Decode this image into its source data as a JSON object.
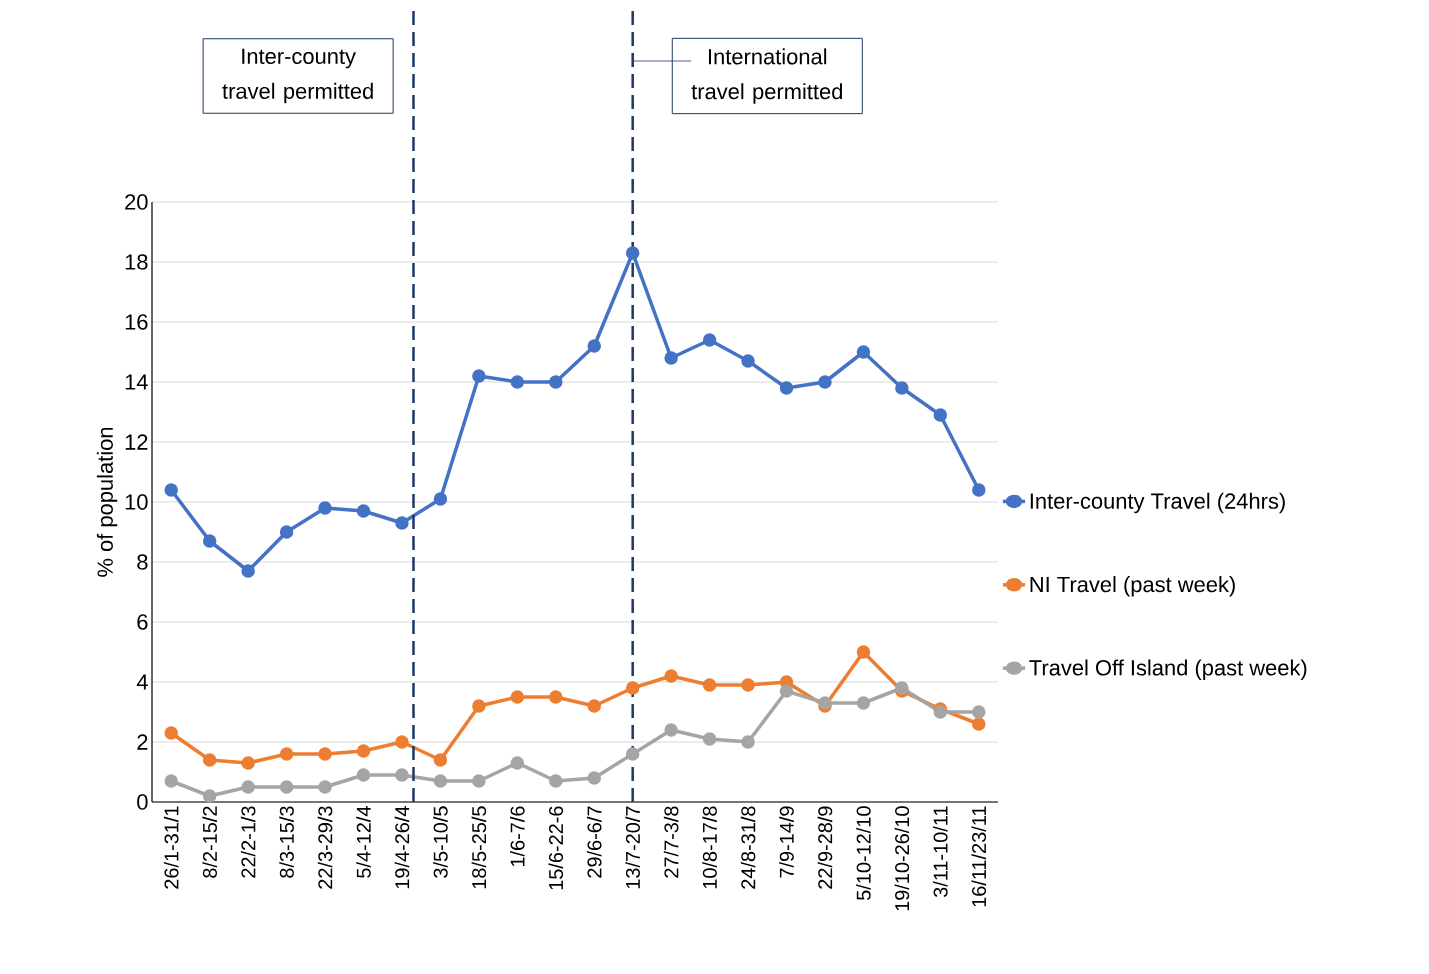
{
  "chart_data": {
    "type": "line",
    "ylabel": "% of population",
    "categories": [
      "26/1-31/1",
      "8/2-15/2",
      "22/2-1/3",
      "8/3-15/3",
      "22/3-29/3",
      "5/4-12/4",
      "19/4-26/4",
      "3/5-10/5",
      "18/5-25/5",
      "1/6-7/6",
      "15/6-22-6",
      "29/6-6/7",
      "13/7-20/7",
      "27/7-3/8",
      "10/8-17/8",
      "24/8-31/8",
      "7/9-14/9",
      "22/9-28/9",
      "5/10-12/10",
      "19/10-26/10",
      "3/11-10/11",
      "16/11/23/11"
    ],
    "series": [
      {
        "name": "Inter-county Travel (24hrs)",
        "color": "#4472c4",
        "values": [
          10.4,
          8.7,
          7.7,
          9.0,
          9.8,
          9.7,
          9.3,
          10.1,
          14.2,
          14.0,
          14.0,
          15.2,
          18.3,
          14.8,
          15.4,
          14.7,
          13.8,
          14.0,
          15.0,
          13.8,
          12.9,
          10.4
        ]
      },
      {
        "name": "NI Travel (past week)",
        "color": "#ed7d31",
        "values": [
          2.3,
          1.4,
          1.3,
          1.6,
          1.6,
          1.7,
          2.0,
          1.4,
          3.2,
          3.5,
          3.5,
          3.2,
          3.8,
          4.2,
          3.9,
          3.9,
          4.0,
          3.2,
          5.0,
          3.7,
          3.1,
          2.6
        ]
      },
      {
        "name": "Travel Off Island (past week)",
        "color": "#a5a5a5",
        "values": [
          0.7,
          0.2,
          0.5,
          0.5,
          0.5,
          0.9,
          0.9,
          0.7,
          0.7,
          1.3,
          0.7,
          0.8,
          1.6,
          2.4,
          2.1,
          2.0,
          3.7,
          3.3,
          3.3,
          3.8,
          3.0,
          3.0
        ]
      }
    ],
    "ylim": [
      0,
      20
    ],
    "yticks": [
      0,
      2,
      4,
      6,
      8,
      10,
      12,
      14,
      16,
      18,
      20
    ],
    "grid": "y",
    "legend": "right",
    "marker": "circle",
    "line_style": "solid",
    "ref_lines": [
      {
        "axis": "x",
        "value": "19/4-26/4",
        "label": "Inter-county travel permitted",
        "color": "#203864",
        "line_style": "dashed"
      },
      {
        "axis": "x",
        "value": "13/7-20/7",
        "label": "International travel permitted",
        "color": "#203864",
        "line_style": "dashed"
      }
    ]
  }
}
